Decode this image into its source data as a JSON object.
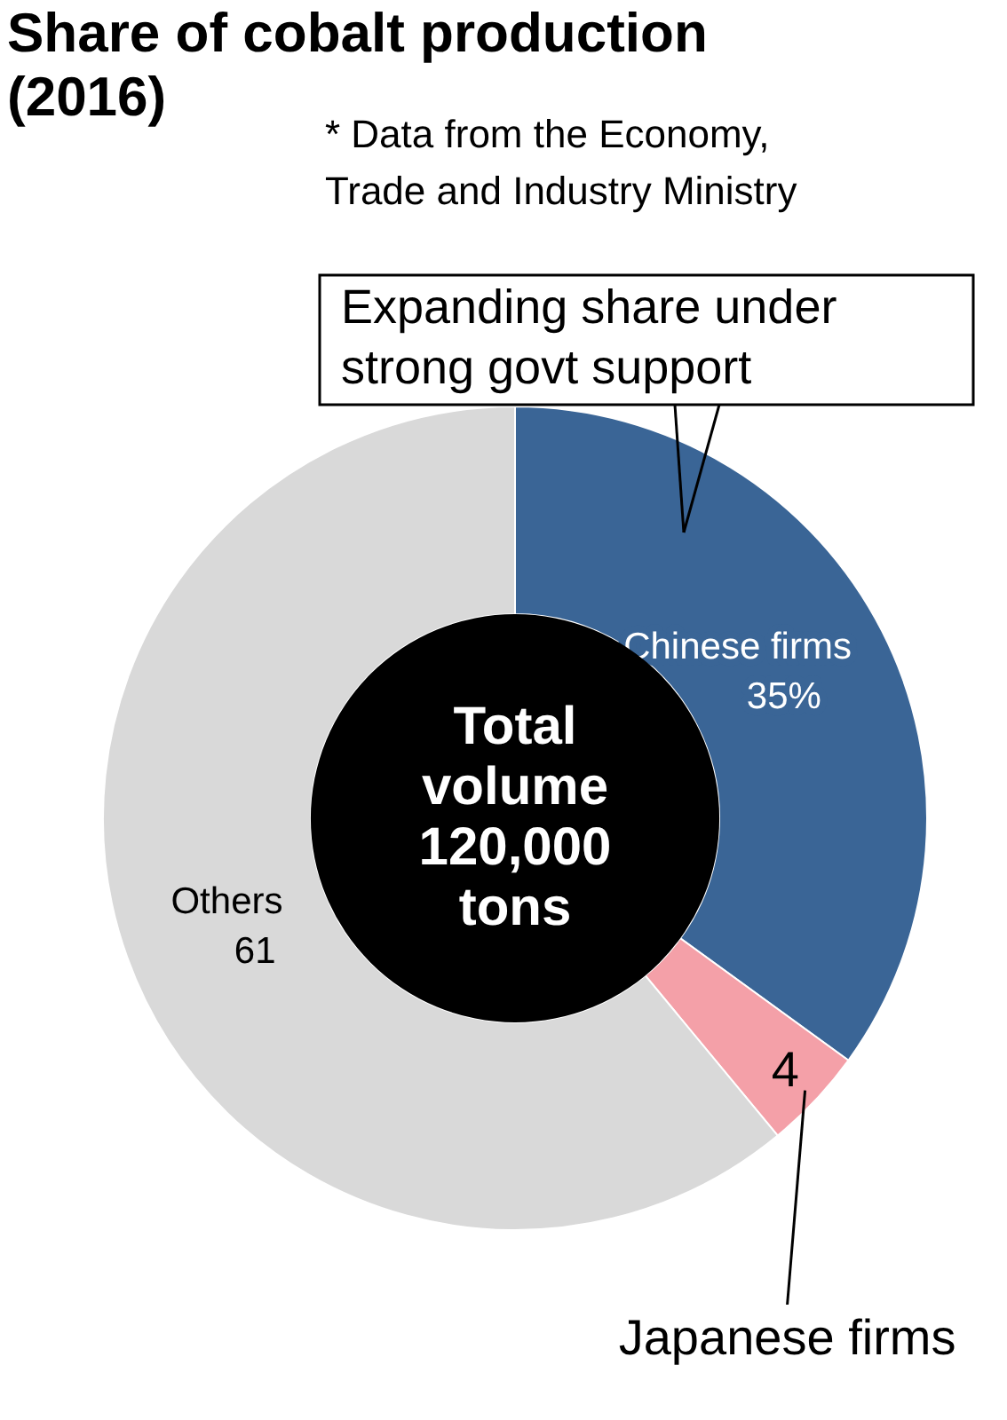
{
  "chart_data": {
    "type": "donut",
    "title": "Share of cobalt production (2016)",
    "categories": [
      "Chinese firms",
      "Japanese firms",
      "Others"
    ],
    "values": [
      35,
      4,
      61
    ],
    "colors": [
      "#3a6596",
      "#f4a0a8",
      "#d9d9d9"
    ],
    "value_labels": [
      "35%",
      "4",
      "61"
    ],
    "annotations": [
      "* Data from the Economy, Trade and Industry Ministry",
      "Expanding share under strong govt support",
      "Total volume 120,000 tons"
    ],
    "legend": false
  }
}
